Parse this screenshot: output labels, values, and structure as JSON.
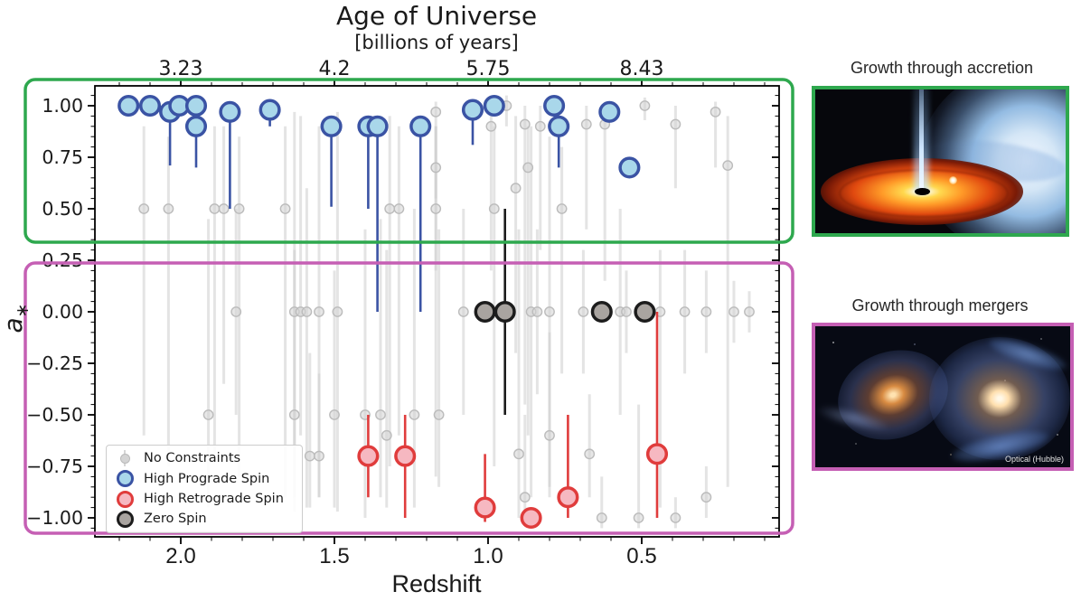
{
  "figure": {
    "top_title": "Age of Universe",
    "top_subtitle": "[billions of years]",
    "xlabel": "Redshift",
    "ylabel": "a*",
    "ylabel_main": "a",
    "ylabel_sub": "∗"
  },
  "right_panel": {
    "accretion_title": "Growth through accretion",
    "mergers_title": "Growth through mergers",
    "mergers_caption": "Optical (Hubble)"
  },
  "legend": {
    "items": [
      {
        "label": "No Constraints",
        "marker": "gray-small-circle-with-errorbar"
      },
      {
        "label": "High Prograde Spin",
        "marker": "blue-circle"
      },
      {
        "label": "High Retrograde Spin",
        "marker": "red-circle"
      },
      {
        "label": "Zero Spin",
        "marker": "black-circle"
      }
    ]
  },
  "colors": {
    "prograde_fill": "#a9d7ea",
    "prograde_edge": "#3a53a4",
    "retrograde_fill": "#f6b8c1",
    "retrograde_edge": "#e03c3c",
    "zero_fill": "#a9a4a0",
    "zero_edge": "#1c1c1c",
    "no_constraint_fill": "#d4d4d4",
    "no_constraint_edge": "#bcbcbc",
    "no_constraint_bar": "rgba(205,205,205,0.55)",
    "accretion_box": "#2EA84E",
    "mergers_box": "#C55FB4",
    "axis": "#000000",
    "text": "#1a1a1a"
  },
  "chart_data": {
    "type": "scatter",
    "title": "Age of Universe [billions of years]",
    "xlabel": "Redshift",
    "ylabel": "a*",
    "x_axis": {
      "inverted": true,
      "min": 0.05,
      "max": 2.28,
      "major_ticks": [
        2.0,
        1.5,
        1.0,
        0.5
      ],
      "tick_labels": [
        "2.0",
        "1.5",
        "1.0",
        "0.5"
      ],
      "minor_step": 0.1
    },
    "top_axis": {
      "tick_positions_redshift": [
        2.0,
        1.5,
        1.0,
        0.5
      ],
      "tick_labels": [
        "3.23",
        "4.2",
        "5.75",
        "8.43"
      ]
    },
    "y_axis": {
      "min": -1.09,
      "max": 1.09,
      "major_ticks": [
        1.0,
        0.75,
        0.5,
        0.25,
        0.0,
        -0.25,
        -0.5,
        -0.75,
        -1.0
      ],
      "tick_labels": [
        "1.00",
        "0.75",
        "0.50",
        "0.25",
        "0.00",
        "−0.25",
        "−0.50",
        "−0.75",
        "−1.00"
      ],
      "minor_step": 0.05
    },
    "point_format": [
      "redshift",
      "a_star",
      "err_lo",
      "err_hi"
    ],
    "series": [
      {
        "name": "No Constraints",
        "points": [
          [
            2.12,
            0.5,
            -0.6,
            0.9
          ],
          [
            2.04,
            0.5,
            -0.75,
            0.85
          ],
          [
            1.91,
            -0.5,
            -0.95,
            0.45
          ],
          [
            1.89,
            0.5,
            -0.7,
            0.9
          ],
          [
            1.86,
            0.5,
            -0.35,
            0.9
          ],
          [
            1.82,
            0,
            -0.5,
            0.5
          ],
          [
            1.81,
            0.5,
            -0.8,
            0.85
          ],
          [
            1.66,
            0.5,
            -0.9,
            0.9
          ],
          [
            1.63,
            0,
            -0.97,
            0.97
          ],
          [
            1.63,
            -0.5,
            -0.9,
            0.3
          ],
          [
            1.61,
            0,
            -0.6,
            0.95
          ],
          [
            1.59,
            0,
            -0.95,
            0.6
          ],
          [
            1.58,
            -0.7,
            -0.95,
            -0.2
          ],
          [
            1.55,
            0,
            -0.9,
            0.9
          ],
          [
            1.55,
            -0.7,
            -0.9,
            -0.3
          ],
          [
            1.5,
            -0.5,
            -0.95,
            0.2
          ],
          [
            1.49,
            0,
            -0.97,
            0.97
          ],
          [
            1.4,
            -0.5,
            -1,
            0.4
          ],
          [
            1.35,
            -0.5,
            -0.9,
            0.45
          ],
          [
            1.33,
            -0.6,
            -0.95,
            0.3
          ],
          [
            1.32,
            0.5,
            -0.75,
            0.95
          ],
          [
            1.29,
            0.5,
            -0.6,
            0.9
          ],
          [
            1.24,
            -0.5,
            -0.95,
            0.5
          ],
          [
            1.17,
            0.97,
            0.55,
            1.02
          ],
          [
            1.17,
            0.5,
            -0.8,
            0.9
          ],
          [
            1.17,
            0.7,
            0.2,
            0.9
          ],
          [
            1.16,
            -0.5,
            -0.85,
            0.4
          ],
          [
            1.08,
            0,
            -0.5,
            0.5
          ],
          [
            0.99,
            0.9,
            0.2,
            1
          ],
          [
            0.98,
            0.5,
            -0.75,
            0.9
          ],
          [
            0.94,
            1,
            0.9,
            1.05
          ],
          [
            0.91,
            0.6,
            -0.2,
            0.95
          ],
          [
            0.9,
            -0.69,
            -1,
            0.4
          ],
          [
            0.88,
            0.91,
            -0.45,
            1
          ],
          [
            0.88,
            -0.9,
            -1,
            -0.5
          ],
          [
            0.87,
            0.7,
            -0.6,
            0.9
          ],
          [
            0.86,
            0,
            -0.9,
            0.9
          ],
          [
            0.84,
            0,
            -0.4,
            0.4
          ],
          [
            0.83,
            0.9,
            0.3,
            1
          ],
          [
            0.8,
            0,
            -0.85,
            0.85
          ],
          [
            0.8,
            -0.6,
            -0.9,
            -0.1
          ],
          [
            0.76,
            0.5,
            -0.3,
            0.8
          ],
          [
            0.69,
            0,
            -0.3,
            0.3
          ],
          [
            0.68,
            0.91,
            0.4,
            1
          ],
          [
            0.67,
            -0.69,
            -0.9,
            -0.4
          ],
          [
            0.63,
            -1,
            -1.05,
            -0.8
          ],
          [
            0.62,
            0.91,
            0.15,
            1
          ],
          [
            0.57,
            0,
            -0.5,
            0.5
          ],
          [
            0.55,
            0,
            -0.2,
            0.2
          ],
          [
            0.51,
            -1,
            -1.05,
            -0.45
          ],
          [
            0.49,
            1,
            0.93,
            1.04
          ],
          [
            0.44,
            0,
            -0.95,
            0.3
          ],
          [
            0.39,
            0.91,
            0.6,
            1
          ],
          [
            0.39,
            -1,
            -1.05,
            -0.9
          ],
          [
            0.36,
            0,
            -0.3,
            0.3
          ],
          [
            0.29,
            0,
            -0.2,
            0.2
          ],
          [
            0.29,
            -0.9,
            -1,
            -0.75
          ],
          [
            0.26,
            0.97,
            0.7,
            1.02
          ],
          [
            0.22,
            0.71,
            -0.85,
            0.95
          ],
          [
            0.2,
            0,
            -0.15,
            0.15
          ],
          [
            0.15,
            0,
            -0.1,
            0.1
          ]
        ]
      },
      {
        "name": "High Prograde Spin",
        "points": [
          [
            2.17,
            1,
            null,
            null
          ],
          [
            2.1,
            1,
            null,
            null
          ],
          [
            2.035,
            0.97,
            0.71,
            null
          ],
          [
            2.005,
            1,
            null,
            null
          ],
          [
            1.95,
            1,
            null,
            null
          ],
          [
            1.95,
            0.9,
            0.7,
            null
          ],
          [
            1.84,
            0.97,
            0.5,
            null
          ],
          [
            1.71,
            0.98,
            0.9,
            null
          ],
          [
            1.51,
            0.9,
            0.51,
            null
          ],
          [
            1.39,
            0.9,
            0.5,
            null
          ],
          [
            1.36,
            0.9,
            0,
            null
          ],
          [
            1.22,
            0.9,
            0,
            null
          ],
          [
            1.05,
            0.98,
            0.81,
            null
          ],
          [
            0.98,
            1,
            null,
            null
          ],
          [
            0.785,
            1,
            null,
            null
          ],
          [
            0.77,
            0.9,
            0.7,
            null
          ],
          [
            0.605,
            0.97,
            null,
            null
          ],
          [
            0.54,
            0.7,
            null,
            null
          ]
        ]
      },
      {
        "name": "High Retrograde Spin",
        "points": [
          [
            1.39,
            -0.7,
            -0.9,
            -0.5
          ],
          [
            1.27,
            -0.7,
            -1,
            -0.5
          ],
          [
            1.01,
            -0.95,
            -1.02,
            -0.69
          ],
          [
            0.86,
            -1,
            -1.04,
            -0.96
          ],
          [
            0.74,
            -0.9,
            -1,
            -0.5
          ],
          [
            0.45,
            -0.69,
            -1,
            0
          ]
        ]
      },
      {
        "name": "Zero Spin",
        "points": [
          [
            1.01,
            0,
            null,
            null
          ],
          [
            0.945,
            0,
            -0.5,
            0.5
          ],
          [
            0.63,
            0,
            null,
            null
          ],
          [
            0.49,
            0,
            null,
            null
          ]
        ]
      }
    ],
    "annotations": {
      "accretion_region": {
        "label": "Growth through accretion",
        "color": "#2EA84E",
        "a_range": [
          0.35,
          1.09
        ]
      },
      "mergers_region": {
        "label": "Growth through mergers",
        "color": "#C55FB4",
        "a_range": [
          -1.09,
          0.25
        ]
      }
    }
  }
}
